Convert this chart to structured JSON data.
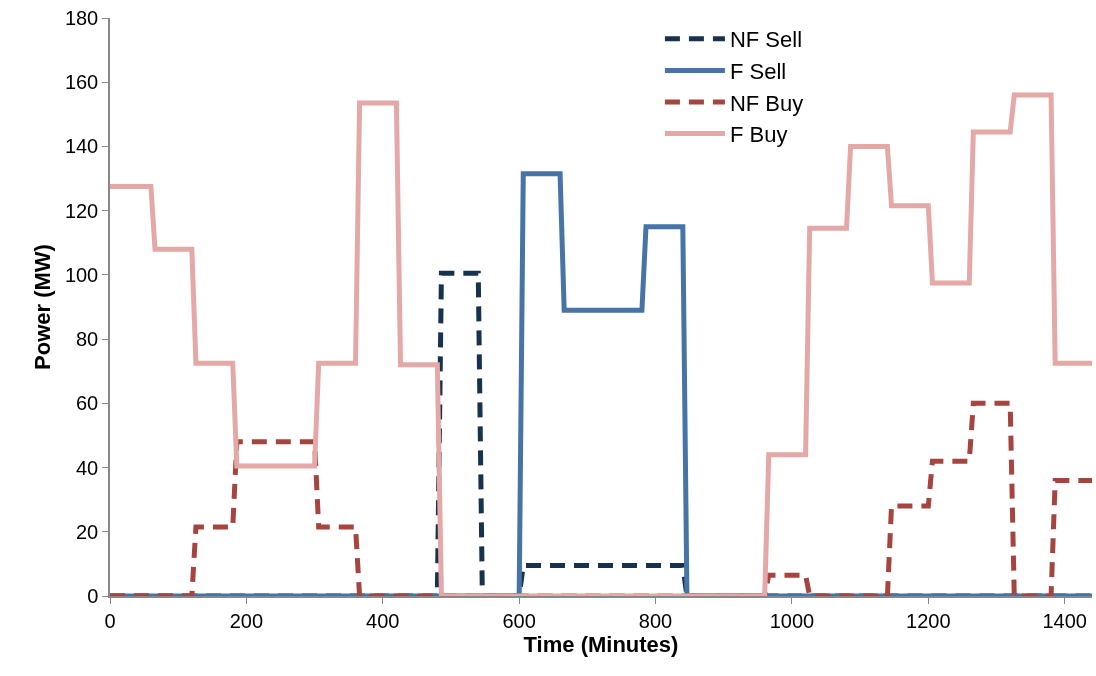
{
  "chart_data": {
    "type": "line",
    "xlabel": "Time (Minutes)",
    "ylabel": "Power (MW)",
    "x": [
      0,
      60,
      66,
      120,
      126,
      180,
      186,
      240,
      246,
      300,
      306,
      360,
      366,
      420,
      426,
      480,
      486,
      540,
      546,
      600,
      606,
      660,
      666,
      720,
      726,
      780,
      786,
      840,
      846,
      900,
      906,
      960,
      966,
      1020,
      1026,
      1080,
      1086,
      1140,
      1146,
      1200,
      1206,
      1260,
      1266,
      1320,
      1326,
      1380,
      1386,
      1440
    ],
    "xlim": [
      0,
      1440
    ],
    "xticks": [
      0,
      200,
      400,
      600,
      800,
      1000,
      1200,
      1400
    ],
    "ylim": [
      0,
      180
    ],
    "yticks": [
      0,
      20,
      40,
      60,
      80,
      100,
      120,
      140,
      160,
      180
    ],
    "legend": "top right",
    "marker": "none",
    "series": [
      {
        "name": "NF Sell",
        "color": "#17324f",
        "line_style": "dashed",
        "values": [
          0,
          0,
          0,
          0,
          0,
          0,
          0,
          0,
          0,
          0,
          0,
          0,
          0,
          0,
          0,
          0,
          100.5,
          100.5,
          0,
          0,
          9.5,
          9.5,
          9.5,
          9.5,
          9.5,
          9.5,
          9.5,
          9.5,
          0,
          0,
          0,
          0,
          0,
          0,
          0,
          0,
          0,
          0,
          0,
          0,
          0,
          0,
          0,
          0,
          0,
          0,
          0,
          0
        ]
      },
      {
        "name": "F Sell",
        "color": "#4674a6",
        "line_style": "solid",
        "values": [
          0,
          0,
          0,
          0,
          0,
          0,
          0,
          0,
          0,
          0,
          0,
          0,
          0,
          0,
          0,
          0,
          0,
          0,
          0,
          0,
          131.5,
          131.5,
          89,
          89,
          89,
          89,
          115,
          115,
          0,
          0,
          0,
          0,
          0,
          0,
          0,
          0,
          0,
          0,
          0,
          0,
          0,
          0,
          0,
          0,
          0,
          0,
          0,
          0
        ]
      },
      {
        "name": "NF Buy",
        "color": "#a6443f",
        "line_style": "dashed",
        "values": [
          0,
          0,
          0,
          0,
          21.5,
          21.5,
          48,
          48,
          48,
          48,
          21.5,
          21.5,
          0,
          0,
          0,
          0,
          0,
          0,
          0,
          0,
          0,
          0,
          0,
          0,
          0,
          0,
          0,
          0,
          0,
          0,
          0,
          0,
          6.5,
          6.5,
          0,
          0,
          0,
          0,
          28,
          28,
          42,
          42,
          60,
          60,
          0,
          0,
          36,
          36
        ]
      },
      {
        "name": "F Buy",
        "color": "#e4a8a6",
        "line_style": "solid",
        "values": [
          127.5,
          127.5,
          108,
          108,
          72.5,
          72.5,
          40.5,
          40.5,
          40.5,
          40.5,
          72.5,
          72.5,
          153.5,
          153.5,
          72,
          72,
          0,
          0,
          0,
          0,
          0,
          0,
          0,
          0,
          0,
          0,
          0,
          0,
          0,
          0,
          0,
          0,
          44,
          44,
          114.5,
          114.5,
          140,
          140,
          121.5,
          121.5,
          97.5,
          97.5,
          144.5,
          144.5,
          156,
          156,
          72.5,
          72.5
        ]
      }
    ]
  }
}
